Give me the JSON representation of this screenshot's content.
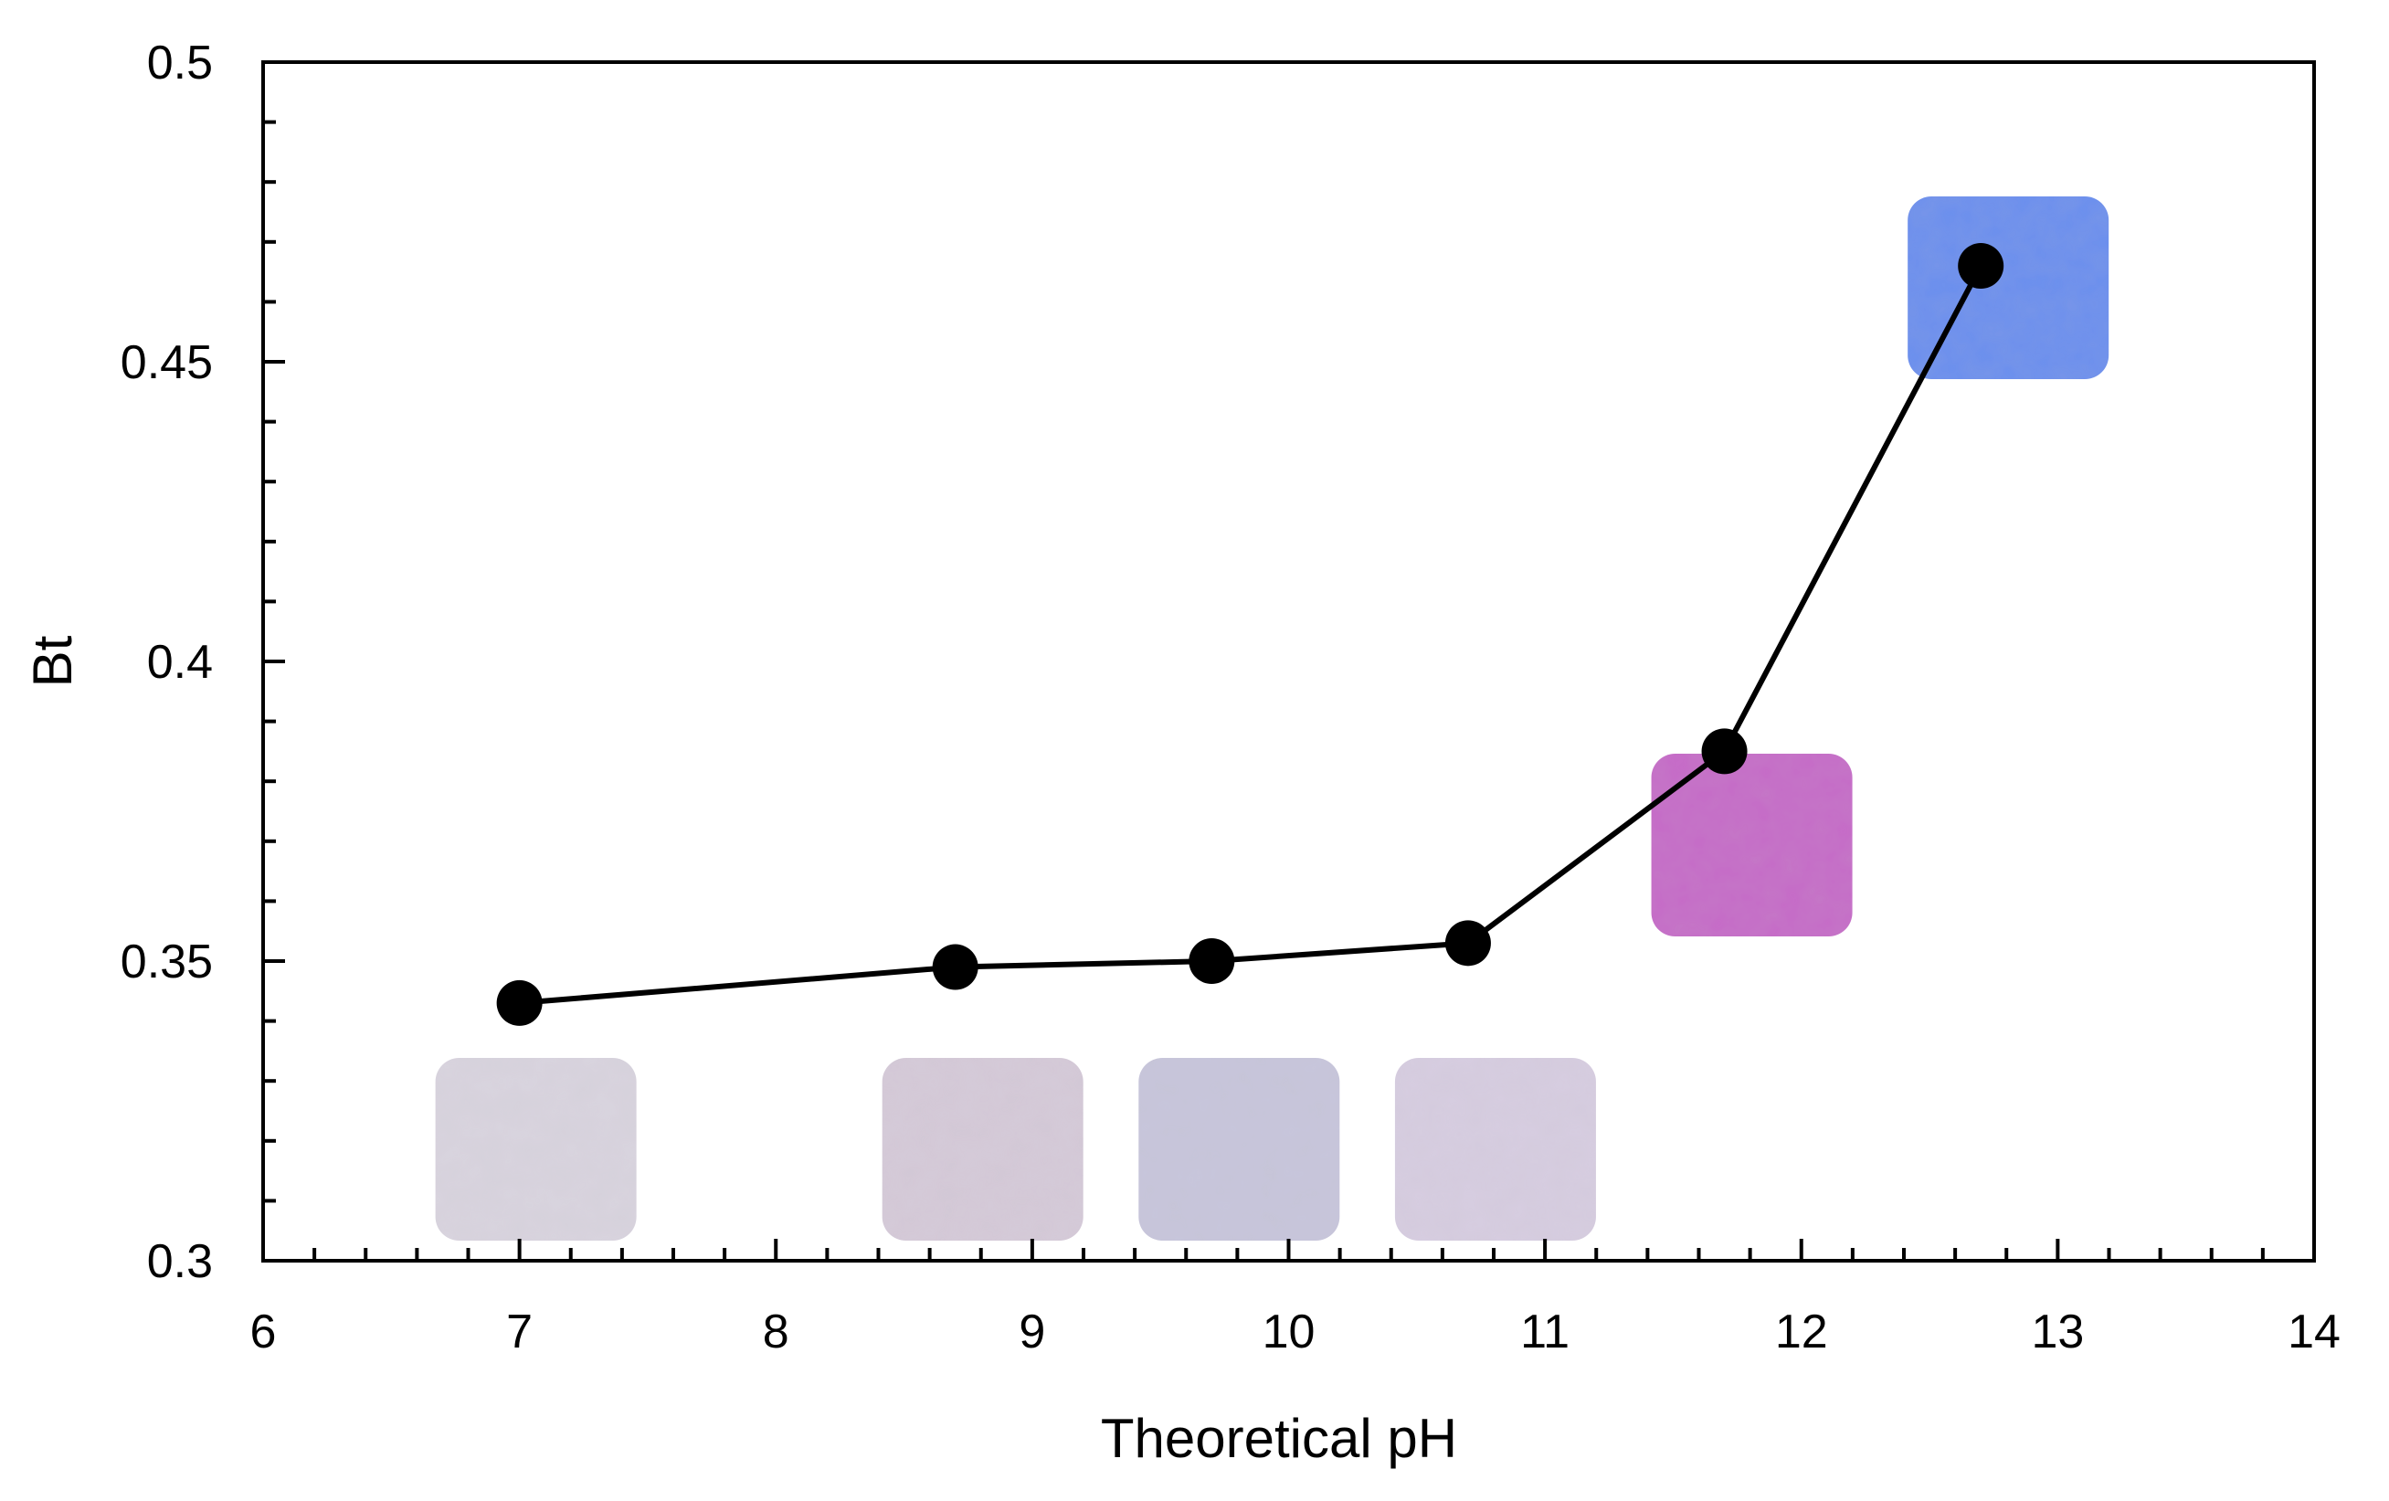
{
  "chart_data": {
    "type": "line",
    "title": "",
    "xlabel": "Theoretical pH",
    "ylabel": "Bt",
    "xlim": [
      6,
      14
    ],
    "ylim": [
      0.3,
      0.5
    ],
    "x_ticks": [
      6,
      7,
      8,
      9,
      10,
      11,
      12,
      13,
      14
    ],
    "x_tick_labels": [
      "6",
      "7",
      "8",
      "9",
      "10",
      "11",
      "12",
      "13",
      "14"
    ],
    "y_ticks": [
      0.3,
      0.35,
      0.4,
      0.45,
      0.5
    ],
    "y_tick_labels": [
      "0.3",
      "0.35",
      "0.4",
      "0.45",
      "0.5"
    ],
    "grid": false,
    "legend": "none",
    "series": [
      {
        "name": "Bt",
        "x": [
          7.0,
          8.7,
          9.7,
          10.7,
          11.7,
          12.7
        ],
        "y": [
          0.343,
          0.349,
          0.35,
          0.353,
          0.385,
          0.466
        ]
      }
    ],
    "swatches": [
      {
        "ph": 7.0,
        "color": "#d9d4df"
      },
      {
        "ph": 8.7,
        "color": "#d5cad9"
      },
      {
        "ph": 9.7,
        "color": "#c8c6dc"
      },
      {
        "ph": 10.7,
        "color": "#d7cde1"
      },
      {
        "ph": 11.7,
        "color": "#c66ac8"
      },
      {
        "ph": 12.7,
        "color": "#6b8fee"
      }
    ],
    "colors": {
      "line": "#000000",
      "marker": "#000000",
      "axis": "#000000"
    }
  }
}
